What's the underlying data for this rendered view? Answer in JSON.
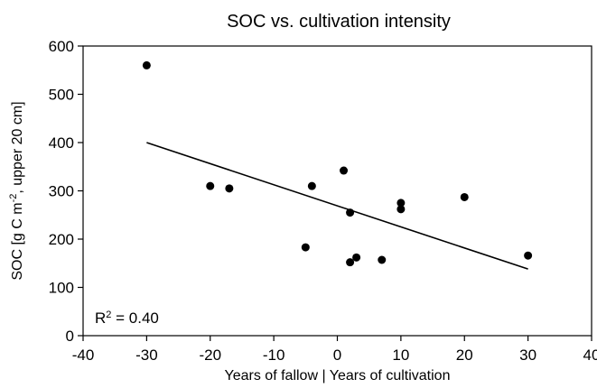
{
  "chart_data": {
    "type": "scatter",
    "title": "SOC  vs. cultivation intensity",
    "xlabel": "Years of fallow  |  Years of cultivation",
    "ylabel": "SOC [g C m",
    "ylabel_sup": "-2",
    "ylabel_suffix": ",  upper 20 cm]",
    "xlim": [
      -40,
      40
    ],
    "ylim": [
      0,
      600
    ],
    "x_ticks": [
      -40,
      -30,
      -20,
      -10,
      0,
      10,
      20,
      30,
      40
    ],
    "y_ticks": [
      0,
      100,
      200,
      300,
      400,
      500,
      600
    ],
    "x_tick_labels": [
      "-40",
      "-30",
      "-20",
      "-10",
      "0",
      "10",
      "20",
      "30",
      "40"
    ],
    "y_tick_labels": [
      "0",
      "100",
      "200",
      "300",
      "400",
      "500",
      "600"
    ],
    "grid": false,
    "series": [
      {
        "points": [
          {
            "x": -30,
            "y": 560
          },
          {
            "x": -20,
            "y": 310
          },
          {
            "x": -17,
            "y": 305
          },
          {
            "x": -5,
            "y": 183
          },
          {
            "x": -4,
            "y": 310
          },
          {
            "x": 1,
            "y": 342
          },
          {
            "x": 2,
            "y": 255
          },
          {
            "x": 2,
            "y": 152
          },
          {
            "x": 3,
            "y": 162
          },
          {
            "x": 7,
            "y": 157
          },
          {
            "x": 10,
            "y": 275
          },
          {
            "x": 10,
            "y": 262
          },
          {
            "x": 20,
            "y": 287
          },
          {
            "x": 30,
            "y": 166
          }
        ],
        "color": "#000000"
      }
    ],
    "trendline": {
      "x": [
        -30,
        30
      ],
      "y": [
        400,
        138
      ],
      "color": "#000000"
    },
    "annotation": {
      "text": "R",
      "sup": "2",
      "suffix": " = 0.40"
    }
  }
}
